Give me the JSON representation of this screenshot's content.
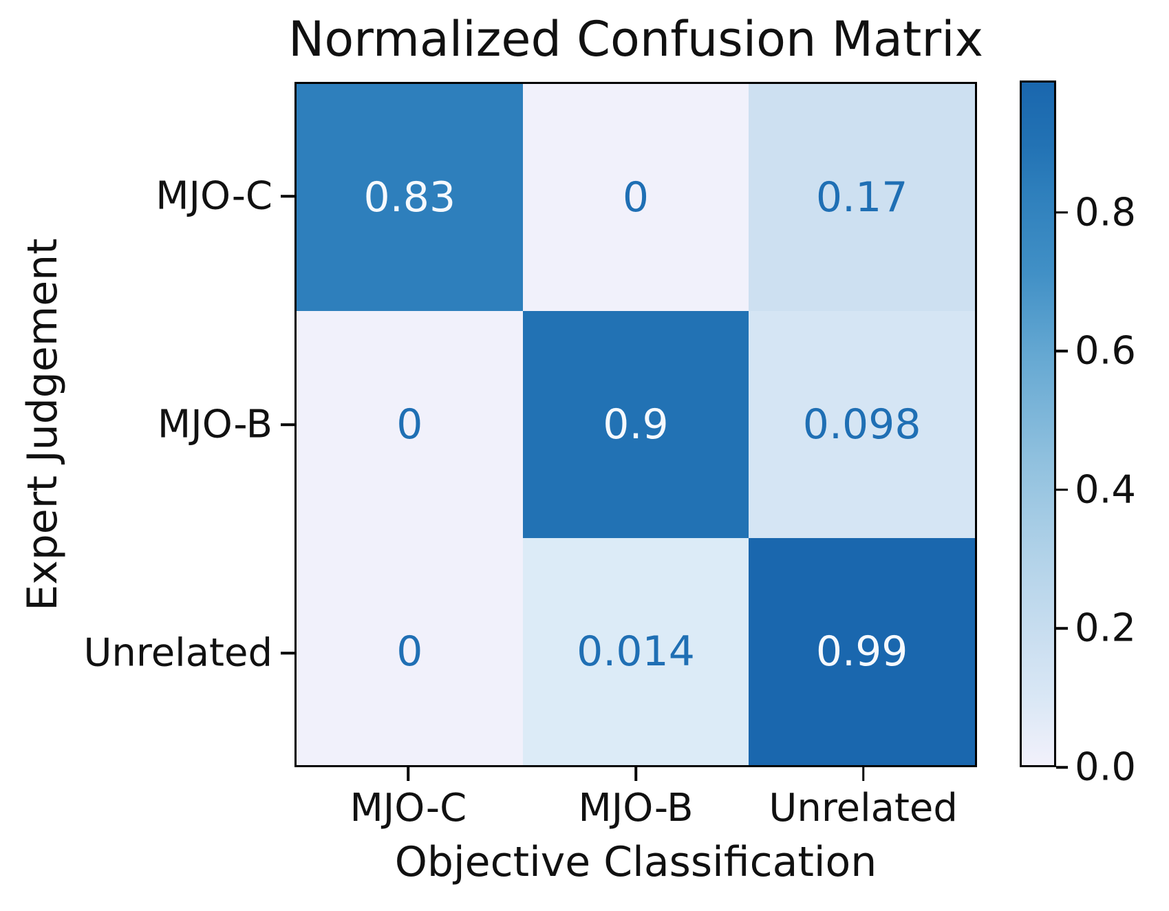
{
  "chart_data": {
    "type": "heatmap",
    "title": "Normalized Confusion Matrix",
    "xlabel": "Objective Classification",
    "ylabel": "Expert Judgement",
    "x_categories": [
      "MJO-C",
      "MJO-B",
      "Unrelated"
    ],
    "y_categories": [
      "MJO-C",
      "MJO-B",
      "Unrelated"
    ],
    "values": [
      [
        0.83,
        0,
        0.17
      ],
      [
        0,
        0.9,
        0.098
      ],
      [
        0,
        0.014,
        0.99
      ]
    ],
    "cells": [
      [
        {
          "label": "0.83",
          "bg": "#2e7fbc",
          "fg": "#f6f9fd"
        },
        {
          "label": "0",
          "bg": "#f1f1fb",
          "fg": "#1f6fb4"
        },
        {
          "label": "0.17",
          "bg": "#cde0f1",
          "fg": "#1f6fb4"
        }
      ],
      [
        {
          "label": "0",
          "bg": "#f1f1fb",
          "fg": "#1f6fb4"
        },
        {
          "label": "0.9",
          "bg": "#2272b4",
          "fg": "#f6f9fd"
        },
        {
          "label": "0.098",
          "bg": "#d5e5f4",
          "fg": "#1f6fb4"
        }
      ],
      [
        {
          "label": "0",
          "bg": "#f1f1fb",
          "fg": "#1f6fb4"
        },
        {
          "label": "0.014",
          "bg": "#dcebf7",
          "fg": "#1f6fb4"
        },
        {
          "label": "0.99",
          "bg": "#1a67ae",
          "fg": "#f6f9fd"
        }
      ]
    ],
    "colormap": "Blues",
    "vmin": 0,
    "vmax": 0.99,
    "grid": false,
    "colorbar": {
      "position": "right",
      "ticks": [
        {
          "label": "0.8",
          "value": 0.8
        },
        {
          "label": "0.6",
          "value": 0.6
        },
        {
          "label": "0.4",
          "value": 0.4
        },
        {
          "label": "0.2",
          "value": 0.2
        },
        {
          "label": "0.0",
          "value": 0.0
        }
      ],
      "gradient_stops": [
        {
          "at": 0.0,
          "color": "#f2f1fb"
        },
        {
          "at": 0.1,
          "color": "#d9e7f5"
        },
        {
          "at": 0.17,
          "color": "#cde0f1"
        },
        {
          "at": 0.3,
          "color": "#b3d3e9"
        },
        {
          "at": 0.45,
          "color": "#8fc0de"
        },
        {
          "at": 0.6,
          "color": "#65a8d2"
        },
        {
          "at": 0.72,
          "color": "#4190c6"
        },
        {
          "at": 0.84,
          "color": "#2e7fbc"
        },
        {
          "at": 0.91,
          "color": "#2272b4"
        },
        {
          "at": 1.0,
          "color": "#1a67ae"
        }
      ]
    }
  }
}
